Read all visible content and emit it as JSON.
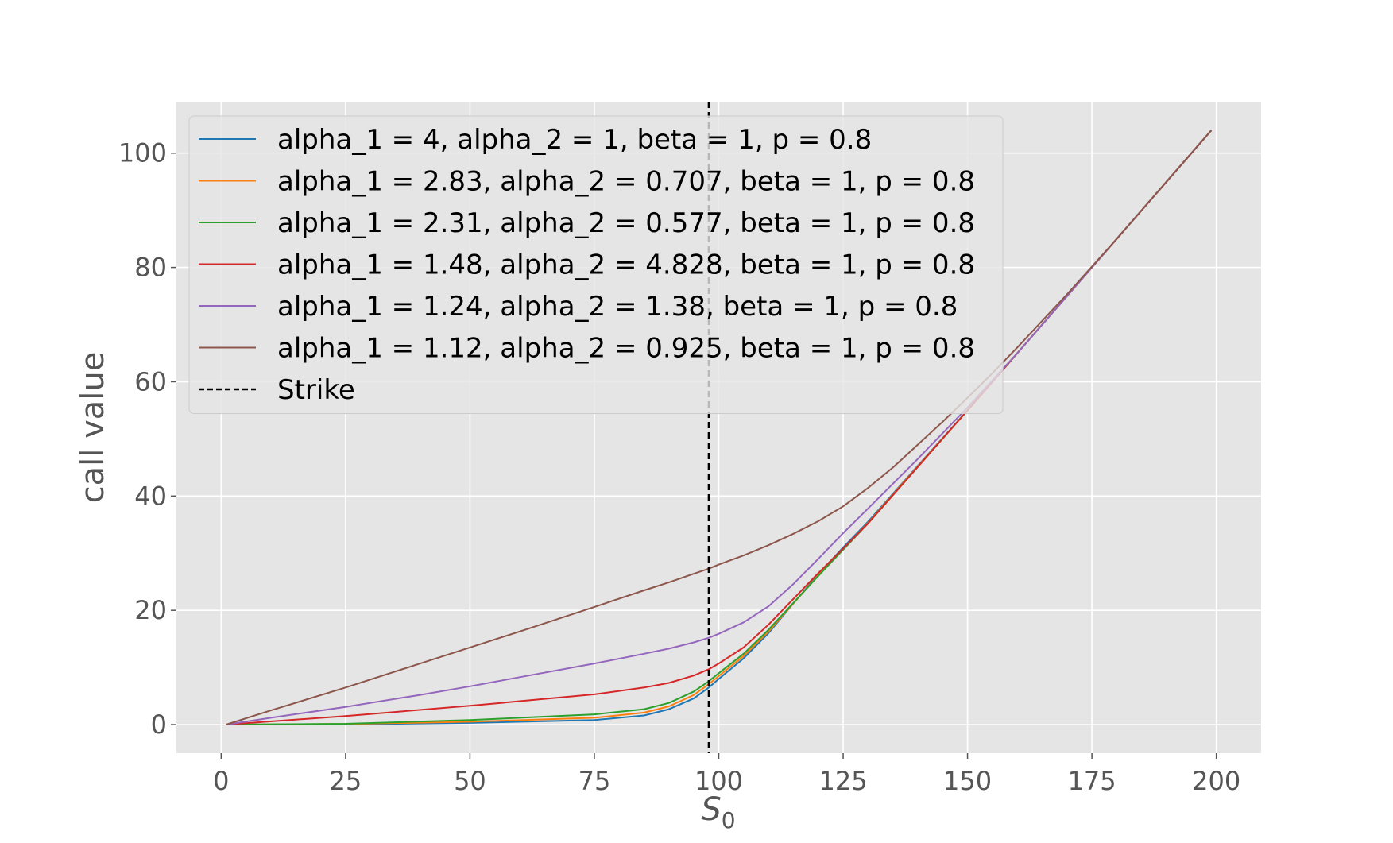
{
  "chart_data": {
    "type": "line",
    "title": "",
    "xlabel": "S",
    "xlabel_sub": "0",
    "ylabel": "call value",
    "xlim": [
      -9,
      209
    ],
    "ylim": [
      -5,
      109
    ],
    "xticks": [
      0,
      25,
      50,
      75,
      100,
      125,
      150,
      175,
      200
    ],
    "yticks": [
      0,
      20,
      40,
      60,
      80,
      100
    ],
    "grid": true,
    "legend_position": "top-left",
    "background": "#e5e5e5",
    "strike": {
      "name": "Strike",
      "x": 98,
      "color": "#000000",
      "style": "dashed"
    },
    "series": [
      {
        "name": "alpha_1 = 4, alpha_2 = 1, beta = 1, p = 0.8",
        "color": "#1f77b4",
        "x": [
          1,
          25,
          50,
          75,
          85,
          90,
          95,
          98,
          100,
          105,
          110,
          115,
          120,
          125,
          130,
          140,
          150,
          160,
          170,
          180,
          190,
          199
        ],
        "y": [
          0,
          0.05,
          0.3,
          0.8,
          1.6,
          2.7,
          4.6,
          6.5,
          8,
          11.6,
          16,
          21.2,
          26.3,
          31,
          35.5,
          45.3,
          55,
          65,
          75,
          85,
          95,
          104
        ]
      },
      {
        "name": "alpha_1 = 2.83, alpha_2 = 0.707, beta = 1, p = 0.8",
        "color": "#ff7f0e",
        "x": [
          1,
          25,
          50,
          75,
          85,
          90,
          95,
          98,
          100,
          105,
          110,
          115,
          120,
          125,
          130,
          140,
          150,
          160,
          170,
          180,
          190,
          199
        ],
        "y": [
          0,
          0.1,
          0.5,
          1.2,
          2.1,
          3.2,
          5.2,
          7.1,
          8.5,
          12,
          16.3,
          21.2,
          26.1,
          30.7,
          35.3,
          45.2,
          55,
          65,
          75,
          85,
          95,
          104
        ]
      },
      {
        "name": "alpha_1 = 2.31, alpha_2 = 0.577, beta = 1, p = 0.8",
        "color": "#2ca02c",
        "x": [
          1,
          25,
          50,
          75,
          85,
          90,
          95,
          98,
          100,
          105,
          110,
          115,
          120,
          125,
          130,
          140,
          150,
          160,
          170,
          180,
          190,
          199
        ],
        "y": [
          0,
          0.15,
          0.8,
          1.8,
          2.7,
          3.8,
          5.8,
          7.6,
          9,
          12.4,
          16.6,
          21.3,
          26,
          30.6,
          35.2,
          45.1,
          55,
          65,
          75,
          85,
          95,
          104
        ]
      },
      {
        "name": "alpha_1 = 1.48, alpha_2 = 4.828, beta = 1, p = 0.8",
        "color": "#d62728",
        "x": [
          1,
          25,
          50,
          75,
          85,
          90,
          95,
          98,
          100,
          105,
          110,
          115,
          120,
          125,
          130,
          140,
          150,
          160,
          170,
          180,
          190,
          199
        ],
        "y": [
          0,
          1.5,
          3.3,
          5.3,
          6.5,
          7.3,
          8.6,
          9.7,
          10.7,
          13.5,
          17.5,
          22,
          26.5,
          30.8,
          35.2,
          45.1,
          55,
          65,
          75,
          85,
          95,
          104
        ]
      },
      {
        "name": "alpha_1 = 1.24, alpha_2 = 1.38, beta = 1, p = 0.8",
        "color": "#9467bd",
        "x": [
          1,
          10,
          25,
          40,
          50,
          60,
          75,
          85,
          90,
          95,
          98,
          100,
          105,
          110,
          115,
          120,
          125,
          130,
          140,
          150,
          160,
          170,
          180,
          190,
          199
        ],
        "y": [
          0,
          1.2,
          3.1,
          5.2,
          6.7,
          8.3,
          10.7,
          12.4,
          13.3,
          14.4,
          15.2,
          15.9,
          17.9,
          20.7,
          24.6,
          29,
          33.5,
          37.8,
          46.5,
          55.5,
          65,
          75,
          85,
          95,
          104
        ]
      },
      {
        "name": "alpha_1 = 1.12, alpha_2 = 0.925, beta = 1, p = 0.8",
        "color": "#8c564b",
        "x": [
          1,
          10,
          25,
          40,
          50,
          60,
          75,
          85,
          90,
          95,
          98,
          100,
          105,
          110,
          115,
          120,
          125,
          130,
          135,
          140,
          145,
          150,
          155,
          160,
          170,
          180,
          190,
          199
        ],
        "y": [
          0,
          2.5,
          6.5,
          10.7,
          13.5,
          16.3,
          20.6,
          23.5,
          24.9,
          26.4,
          27.3,
          28,
          29.6,
          31.4,
          33.4,
          35.6,
          38.2,
          41.4,
          45,
          49,
          53,
          57.2,
          61.5,
          66,
          75.3,
          85,
          95,
          104
        ]
      }
    ]
  }
}
